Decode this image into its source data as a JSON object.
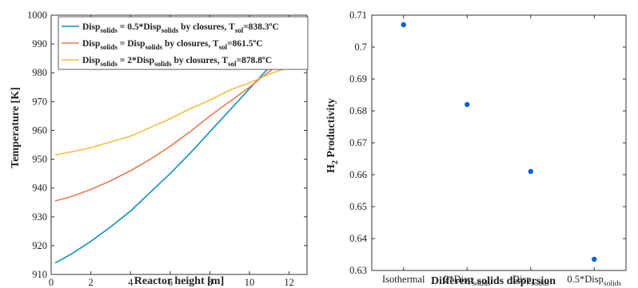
{
  "chart_data": [
    {
      "type": "line",
      "xlabel": "Reactor height [m]",
      "ylabel": "Temperature [K]",
      "xlim": [
        0,
        12.9
      ],
      "ylim": [
        910,
        1000
      ],
      "xticks": [
        "0",
        "2",
        "4",
        "6",
        "8",
        "10",
        "12"
      ],
      "yticks": [
        "910",
        "920",
        "930",
        "940",
        "950",
        "960",
        "970",
        "980",
        "990",
        "1000"
      ],
      "grid": false,
      "legend_position": "top-left",
      "x": [
        0.2,
        1,
        2,
        3,
        4,
        5,
        6,
        7,
        8,
        9,
        10,
        11,
        12,
        12.8
      ],
      "series": [
        {
          "name": "Disp_solids = 0.5*Disp_solids by closures, T_sol=838.3ºC",
          "legend": {
            "a": "Disp",
            "b": "solids",
            "c": " = 0.5*Disp",
            "d": "solids",
            "e": " by closures, T",
            "f": "sol",
            "g": "=838.3ºC"
          },
          "color": "#0f8fc6",
          "values": [
            914,
            917,
            921.5,
            926.5,
            932,
            938.5,
            945,
            952,
            959.5,
            967,
            974.5,
            982,
            989.5,
            995
          ]
        },
        {
          "name": "Disp_solids = Disp_solids by closures, T_sol=861.5ºC",
          "legend": {
            "a": "Disp",
            "b": "solids",
            "c": " = Disp",
            "d": "solids",
            "e": " by closures, T",
            "f": "sol",
            "g": "=861.5ºC"
          },
          "color": "#ec7a52",
          "values": [
            935.5,
            937,
            939.5,
            942.5,
            946,
            950,
            954.5,
            959.5,
            965,
            970,
            975,
            980.5,
            985.5,
            988
          ]
        },
        {
          "name": "Disp_solids = 2*Disp_solids by closures, T_sol=878.8ºC",
          "legend": {
            "a": "Disp",
            "b": "solids",
            "c": " = 2*Disp",
            "d": "solids",
            "e": " by closures, T",
            "f": "sol",
            "g": "=878.8ºC"
          },
          "color": "#f5be42",
          "values": [
            951.5,
            952.5,
            954,
            956,
            958,
            961,
            964,
            967.5,
            970.5,
            974,
            976.5,
            979.5,
            982,
            983
          ]
        }
      ]
    },
    {
      "type": "scatter",
      "xlabel": "Different solids dispersion",
      "ylabel": {
        "main": "H",
        "sub": "2",
        "rest": " Productivity"
      },
      "ylim": [
        0.63,
        0.71
      ],
      "yticks": [
        "0.63",
        "0.64",
        "0.65",
        "0.66",
        "0.67",
        "0.68",
        "0.69",
        "0.7",
        "0.71"
      ],
      "grid": false,
      "categories": [
        {
          "main": "Isothermal",
          "sub": ""
        },
        {
          "main": "2*Disp",
          "sub": "solids"
        },
        {
          "main": "Disp",
          "sub": "solids"
        },
        {
          "main": "0.5*Disp",
          "sub": "solids"
        }
      ],
      "values": [
        0.707,
        0.682,
        0.661,
        0.6335
      ],
      "color": "#1060d0"
    }
  ]
}
